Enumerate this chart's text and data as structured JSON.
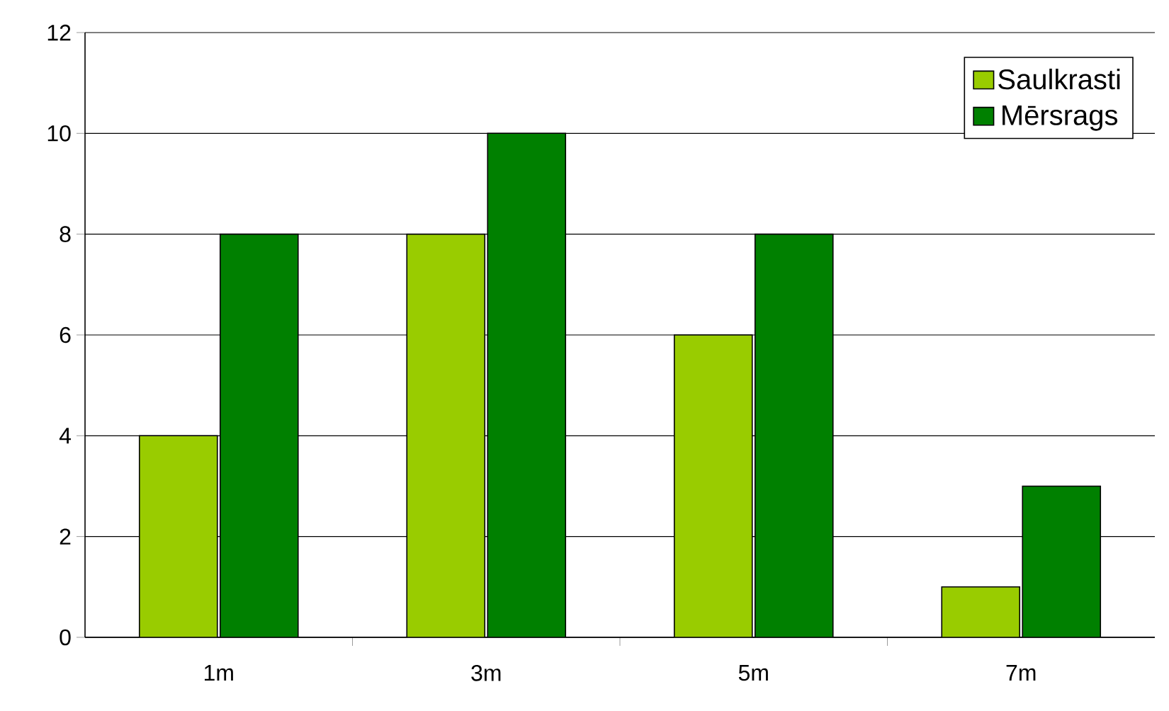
{
  "chart_data": {
    "type": "bar",
    "categories": [
      "1m",
      "3m",
      "5m",
      "7m"
    ],
    "series": [
      {
        "name": "Saulkrasti",
        "color": "#99cc00",
        "values": [
          4,
          8,
          6,
          1
        ]
      },
      {
        "name": "Mērsrags",
        "color": "#008000",
        "values": [
          8,
          10,
          8,
          3
        ]
      }
    ],
    "ylim": [
      0,
      12
    ],
    "yticks": [
      0,
      2,
      4,
      6,
      8,
      10,
      12
    ],
    "grid": "y",
    "legend": "top right"
  }
}
